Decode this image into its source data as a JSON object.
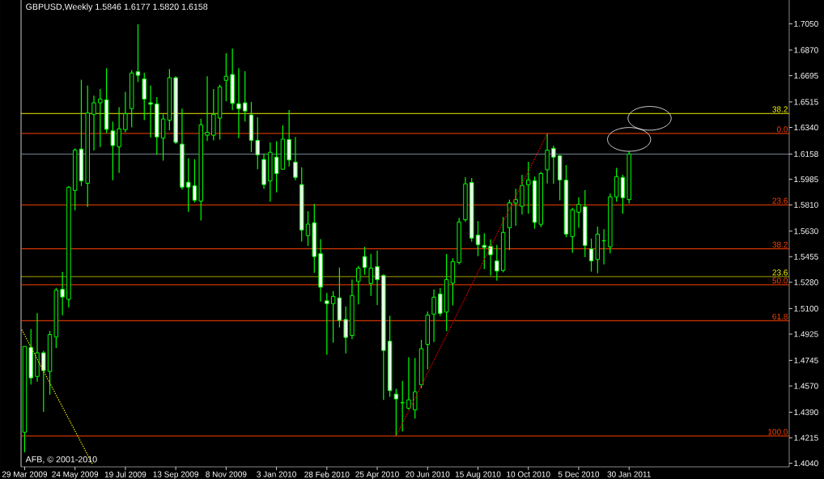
{
  "chart_data": {
    "type": "candlestick",
    "title": "GBPUSD,Weekly 1.5846 1.6177 1.5820 1.6158",
    "annotations": [
      "AFB, © 2001-2010",
      {
        "text": "38.2",
        "y": 1.6436
      },
      {
        "text": "23.6",
        "y": 1.5318
      },
      {
        "text": "0.0",
        "y": 1.6299
      },
      {
        "text": "23.6",
        "y": 1.581
      },
      {
        "text": "38.2",
        "y": 1.5509
      },
      {
        "text": "50.0",
        "y": 1.5263
      },
      {
        "text": "61.8",
        "y": 1.5017
      },
      {
        "text": "100.0",
        "y": 1.4227
      }
    ],
    "color": "#00ff00",
    "x": [
      "2009-03-29",
      "2009-04-05",
      "2009-04-12",
      "2009-04-19",
      "2009-04-26",
      "2009-05-03",
      "2009-05-10",
      "2009-05-17",
      "2009-05-24",
      "2009-05-31",
      "2009-06-07",
      "2009-06-14",
      "2009-06-21",
      "2009-06-28",
      "2009-07-05",
      "2009-07-12",
      "2009-07-19",
      "2009-07-26",
      "2009-08-02",
      "2009-08-09",
      "2009-08-16",
      "2009-08-23",
      "2009-08-30",
      "2009-09-06",
      "2009-09-13",
      "2009-09-20",
      "2009-09-27",
      "2009-10-04",
      "2009-10-11",
      "2009-10-18",
      "2009-10-25",
      "2009-11-01",
      "2009-11-08",
      "2009-11-15",
      "2009-11-22",
      "2009-11-29",
      "2009-12-06",
      "2009-12-13",
      "2009-12-20",
      "2009-12-27",
      "2010-01-03",
      "2010-01-10",
      "2010-01-17",
      "2010-01-24",
      "2010-01-31",
      "2010-02-07",
      "2010-02-14",
      "2010-02-21",
      "2010-02-28",
      "2010-03-07",
      "2010-03-14",
      "2010-03-21",
      "2010-03-28",
      "2010-04-04",
      "2010-04-11",
      "2010-04-18",
      "2010-04-25",
      "2010-05-02",
      "2010-05-09",
      "2010-05-16",
      "2010-05-23",
      "2010-05-30",
      "2010-06-06",
      "2010-06-13",
      "2010-06-20",
      "2010-06-27",
      "2010-07-04",
      "2010-07-11",
      "2010-07-18",
      "2010-07-25",
      "2010-08-01",
      "2010-08-08",
      "2010-08-15",
      "2010-08-22",
      "2010-08-29",
      "2010-09-05",
      "2010-09-12",
      "2010-09-19",
      "2010-09-26",
      "2010-10-03",
      "2010-10-10",
      "2010-10-17",
      "2010-10-24",
      "2010-10-31",
      "2010-11-07",
      "2010-11-14",
      "2010-11-21",
      "2010-11-28",
      "2010-12-05",
      "2010-12-12",
      "2010-12-19",
      "2010-12-26",
      "2011-01-02",
      "2011-01-09",
      "2011-01-16",
      "2011-01-23",
      "2011-01-30"
    ],
    "ohlc": [
      [
        1.4253,
        1.4841,
        1.4115,
        1.4841
      ],
      [
        1.4833,
        1.4959,
        1.458,
        1.4625
      ],
      [
        1.4635,
        1.5068,
        1.4599,
        1.4797
      ],
      [
        1.4797,
        1.4811,
        1.4392,
        1.4675
      ],
      [
        1.4669,
        1.4946,
        1.451,
        1.4922
      ],
      [
        1.4906,
        1.5242,
        1.4831,
        1.5226
      ],
      [
        1.5232,
        1.5351,
        1.5054,
        1.5179
      ],
      [
        1.5163,
        1.5939,
        1.5108,
        1.5931
      ],
      [
        1.5909,
        1.6196,
        1.5773,
        1.6186
      ],
      [
        1.6192,
        1.6667,
        1.5939,
        1.5974
      ],
      [
        1.5958,
        1.6627,
        1.5796,
        1.6439
      ],
      [
        1.643,
        1.6558,
        1.6182,
        1.6509
      ],
      [
        1.6509,
        1.6604,
        1.6206,
        1.6535
      ],
      [
        1.6529,
        1.6746,
        1.6301,
        1.6327
      ],
      [
        1.6317,
        1.638,
        1.5979,
        1.6216
      ],
      [
        1.6208,
        1.6479,
        1.6028,
        1.6331
      ],
      [
        1.6325,
        1.6584,
        1.6307,
        1.6434
      ],
      [
        1.6469,
        1.6732,
        1.6341,
        1.6713
      ],
      [
        1.6722,
        1.7047,
        1.6651,
        1.6697
      ],
      [
        1.6673,
        1.6716,
        1.639,
        1.6534
      ],
      [
        1.6509,
        1.6627,
        1.6271,
        1.6499
      ],
      [
        1.6501,
        1.6548,
        1.6153,
        1.6275
      ],
      [
        1.6267,
        1.643,
        1.6113,
        1.6398
      ],
      [
        1.639,
        1.674,
        1.6321,
        1.6681
      ],
      [
        1.6681,
        1.6691,
        1.6226,
        1.6238
      ],
      [
        1.6226,
        1.6469,
        1.5915,
        1.5931
      ],
      [
        1.5965,
        1.6129,
        1.5763,
        1.5931
      ],
      [
        1.5941,
        1.6123,
        1.5826,
        1.5842
      ],
      [
        1.5836,
        1.64,
        1.5703,
        1.6358
      ],
      [
        1.6287,
        1.6691,
        1.6248,
        1.6307
      ],
      [
        1.6287,
        1.6604,
        1.6252,
        1.643
      ],
      [
        1.6404,
        1.6633,
        1.6257,
        1.6618
      ],
      [
        1.6663,
        1.6849,
        1.6519,
        1.6691
      ],
      [
        1.6703,
        1.6881,
        1.6459,
        1.6505
      ],
      [
        1.6503,
        1.6746,
        1.6267,
        1.6469
      ],
      [
        1.6509,
        1.6726,
        1.638,
        1.6453
      ],
      [
        1.6426,
        1.6515,
        1.6172,
        1.6252
      ],
      [
        1.6252,
        1.641,
        1.6054,
        1.6153
      ],
      [
        1.6121,
        1.6162,
        1.5919,
        1.5949
      ],
      [
        1.5974,
        1.6238,
        1.5832,
        1.617
      ],
      [
        1.6137,
        1.6246,
        1.5895,
        1.6024
      ],
      [
        1.6054,
        1.6354,
        1.605,
        1.626
      ],
      [
        1.6257,
        1.6459,
        1.6073,
        1.6117
      ],
      [
        1.6103,
        1.6275,
        1.5979,
        1.5998
      ],
      [
        1.5949,
        1.6067,
        1.5559,
        1.5638
      ],
      [
        1.5599,
        1.5767,
        1.5529,
        1.5678
      ],
      [
        1.5688,
        1.5816,
        1.5345,
        1.5456
      ],
      [
        1.5476,
        1.5575,
        1.5147,
        1.5246
      ],
      [
        1.5153,
        1.5207,
        1.4783,
        1.5134
      ],
      [
        1.5134,
        1.5219,
        1.4867,
        1.5183
      ],
      [
        1.5173,
        1.5381,
        1.4971,
        1.5019
      ],
      [
        1.5025,
        1.5114,
        1.4793,
        1.4902
      ],
      [
        1.4916,
        1.5298,
        1.489,
        1.5189
      ],
      [
        1.5286,
        1.5391,
        1.5128,
        1.5377
      ],
      [
        1.5456,
        1.5523,
        1.5331,
        1.5381
      ],
      [
        1.5272,
        1.5474,
        1.5187,
        1.5377
      ],
      [
        1.5387,
        1.5496,
        1.5124,
        1.5298
      ],
      [
        1.5327,
        1.5335,
        1.4475,
        1.4813
      ],
      [
        1.4876,
        1.505,
        1.4495,
        1.4538
      ],
      [
        1.4514,
        1.455,
        1.4227,
        1.4481
      ],
      [
        1.4455,
        1.4605,
        1.4259,
        1.4455
      ],
      [
        1.4417,
        1.4767,
        1.441,
        1.4475
      ],
      [
        1.4406,
        1.4761,
        1.4347,
        1.453
      ],
      [
        1.4578,
        1.4886,
        1.4554,
        1.4825
      ],
      [
        1.4855,
        1.508,
        1.4683,
        1.5056
      ],
      [
        1.5062,
        1.5231,
        1.4871,
        1.5178
      ],
      [
        1.52,
        1.5241,
        1.5049,
        1.5067
      ],
      [
        1.5076,
        1.5473,
        1.4945,
        1.5298
      ],
      [
        1.5274,
        1.5444,
        1.5121,
        1.5422
      ],
      [
        1.5416,
        1.5721,
        1.5403,
        1.5693
      ],
      [
        1.5708,
        1.6,
        1.5695,
        1.5954
      ],
      [
        1.5963,
        1.5994,
        1.5557,
        1.5582
      ],
      [
        1.5603,
        1.5699,
        1.5459,
        1.5538
      ],
      [
        1.5533,
        1.5616,
        1.537,
        1.5518
      ],
      [
        1.5527,
        1.5573,
        1.5326,
        1.5468
      ],
      [
        1.5427,
        1.5536,
        1.5292,
        1.5357
      ],
      [
        1.5361,
        1.5726,
        1.5348,
        1.5621
      ],
      [
        1.5653,
        1.5846,
        1.5501,
        1.5824
      ],
      [
        1.5822,
        1.592,
        1.5667,
        1.5846
      ],
      [
        1.58,
        1.6016,
        1.5745,
        1.5943
      ],
      [
        1.5948,
        1.6105,
        1.575,
        1.5981
      ],
      [
        1.5976,
        1.6004,
        1.5647,
        1.569
      ],
      [
        1.5677,
        1.6037,
        1.5658,
        1.6025
      ],
      [
        1.605,
        1.6299,
        1.5957,
        1.6184
      ],
      [
        1.6197,
        1.6215,
        1.5954,
        1.6137
      ],
      [
        1.6147,
        1.6151,
        1.5841,
        1.5981
      ],
      [
        1.5979,
        1.6083,
        1.5588,
        1.561
      ],
      [
        1.5593,
        1.5791,
        1.5481,
        1.5776
      ],
      [
        1.576,
        1.5861,
        1.5653,
        1.5813
      ],
      [
        1.5797,
        1.5911,
        1.5453,
        1.5532
      ],
      [
        1.5508,
        1.5579,
        1.5353,
        1.5427
      ],
      [
        1.5436,
        1.5662,
        1.5342,
        1.561
      ],
      [
        1.5564,
        1.5643,
        1.5403,
        1.5564
      ],
      [
        1.5523,
        1.5889,
        1.5477,
        1.5865
      ],
      [
        1.5865,
        1.6063,
        1.5832,
        1.6003
      ],
      [
        1.5998,
        1.6016,
        1.5749,
        1.5859
      ],
      [
        1.5846,
        1.6177,
        1.582,
        1.6158
      ]
    ],
    "series": [
      {
        "type": "line",
        "x": [
          "2010-05-16",
          "2010-10-31"
        ],
        "values": [
          1.4227,
          1.6299
        ],
        "color": "#ff0000",
        "line_style": "dotted"
      },
      {
        "type": "line",
        "x": [
          "2009-03-26",
          "2009-06-12"
        ],
        "values": [
          1.4953,
          1.404
        ],
        "color": "#ffff00",
        "line_style": "dotted"
      }
    ],
    "ref_lines": [
      {
        "axis": "y",
        "value": 1.6436,
        "color": "#ffff00"
      },
      {
        "axis": "y",
        "value": 1.5318,
        "color": "#ffff00"
      },
      {
        "axis": "y",
        "value": 1.6158,
        "color": "#778899"
      },
      {
        "axis": "y",
        "value": 1.6299,
        "color": "#ff4000"
      },
      {
        "axis": "y",
        "value": 1.581,
        "color": "#ff4000"
      },
      {
        "axis": "y",
        "value": 1.5509,
        "color": "#ff4000"
      },
      {
        "axis": "y",
        "value": 1.5263,
        "color": "#ff4000"
      },
      {
        "axis": "y",
        "value": 1.5017,
        "color": "#ff4000"
      },
      {
        "axis": "y",
        "value": 1.4227,
        "color": "#ff4000"
      }
    ],
    "xlim": [
      "2009-03-25",
      "2011-07-27"
    ],
    "xticks": [
      {
        "value": "2009-03-29",
        "label": "29 Mar 2009"
      },
      {
        "value": "2009-05-24",
        "label": "24 May 2009"
      },
      {
        "value": "2009-07-19",
        "label": "19 Jul 2009"
      },
      {
        "value": "2009-09-13",
        "label": "13 Sep 2009"
      },
      {
        "value": "2009-11-08",
        "label": "8 Nov 2009"
      },
      {
        "value": "2010-01-03",
        "label": "3 Jan 2010"
      },
      {
        "value": "2010-02-28",
        "label": "28 Feb 2010"
      },
      {
        "value": "2010-04-25",
        "label": "25 Apr 2010"
      },
      {
        "value": "2010-06-20",
        "label": "20 Jun 2010"
      },
      {
        "value": "2010-08-15",
        "label": "15 Aug 2010"
      },
      {
        "value": "2010-10-10",
        "label": "10 Oct 2010"
      },
      {
        "value": "2010-12-05",
        "label": "5 Dec 2010"
      },
      {
        "value": "2011-01-30",
        "label": "30 Jan 2011"
      }
    ],
    "ylim": [
      1.4016,
      1.7213
    ],
    "yticks": [
      {
        "value": 1.705,
        "label": "1.7050"
      },
      {
        "value": 1.687,
        "label": "1.6870"
      },
      {
        "value": 1.6695,
        "label": "1.6695"
      },
      {
        "value": 1.6515,
        "label": "1.6515"
      },
      {
        "value": 1.634,
        "label": "1.6340"
      },
      {
        "value": 1.6158,
        "label": "1.6158"
      },
      {
        "value": 1.5985,
        "label": "1.5985"
      },
      {
        "value": 1.581,
        "label": "1.5810"
      },
      {
        "value": 1.563,
        "label": "1.5630"
      },
      {
        "value": 1.5455,
        "label": "1.5455"
      },
      {
        "value": 1.528,
        "label": "1.5280"
      },
      {
        "value": 1.51,
        "label": "1.5100"
      },
      {
        "value": 1.4925,
        "label": "1.4925"
      },
      {
        "value": 1.4745,
        "label": "1.4745"
      },
      {
        "value": 1.457,
        "label": "1.4570"
      },
      {
        "value": 1.439,
        "label": "1.4390"
      },
      {
        "value": 1.4215,
        "label": "1.4215"
      },
      {
        "value": 1.404,
        "label": "1.4040"
      }
    ]
  }
}
